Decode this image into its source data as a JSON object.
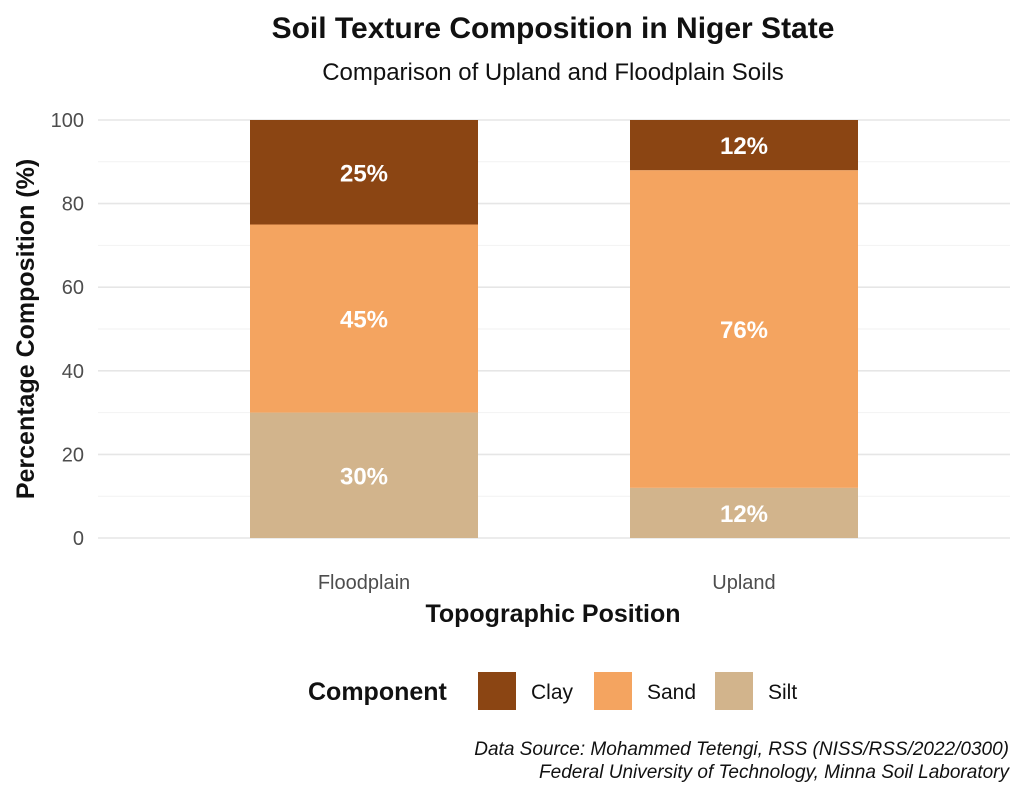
{
  "chart_data": {
    "type": "bar",
    "stacked": true,
    "title": "Soil Texture Composition in Niger State",
    "subtitle": "Comparison of Upland and Floodplain Soils",
    "xlabel": "Topographic Position",
    "ylabel": "Percentage Composition (%)",
    "ylim": [
      0,
      100
    ],
    "yticks": [
      0,
      20,
      40,
      60,
      80,
      100
    ],
    "grid": true,
    "categories": [
      "Floodplain",
      "Upland"
    ],
    "series": [
      {
        "name": "Silt",
        "values": [
          30,
          12
        ],
        "labels": [
          "30%",
          "12%"
        ],
        "color": "#D2B48C"
      },
      {
        "name": "Sand",
        "values": [
          45,
          76
        ],
        "labels": [
          "45%",
          "76%"
        ],
        "color": "#F4A460"
      },
      {
        "name": "Clay",
        "values": [
          25,
          12
        ],
        "labels": [
          "25%",
          "12%"
        ],
        "color": "#8B4513"
      }
    ],
    "legend": {
      "title": "Component",
      "position": "bottom",
      "order": [
        "Clay",
        "Sand",
        "Silt"
      ]
    },
    "caption": [
      "Data Source: Mohammed Tetengi, RSS (NISS/RSS/2022/0300)",
      "Federal University of Technology, Minna Soil Laboratory"
    ]
  }
}
